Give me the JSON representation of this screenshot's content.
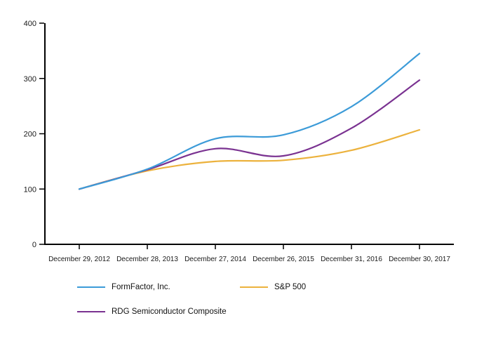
{
  "chart_data": {
    "type": "line",
    "title": "",
    "xlabel": "",
    "ylabel": "",
    "x_tick_labels": [
      "December 29, 2012",
      "December 28, 2013",
      "December 27, 2014",
      "December 26, 2015",
      "December 31, 2016",
      "December 30, 2017"
    ],
    "y_ticks": [
      0,
      100,
      200,
      300,
      400
    ],
    "ylim": [
      0,
      400
    ],
    "grid": false,
    "legend_position": "bottom",
    "axis_color": "#000000",
    "tick_label_color": "#1a1a1a",
    "series": [
      {
        "name": "FormFactor, Inc.",
        "color": "#3c9bd8",
        "values": [
          100,
          136,
          191,
          198,
          249,
          345
        ]
      },
      {
        "name": "S&P 500",
        "color": "#ecb23d",
        "values": [
          100,
          133,
          150,
          152,
          170,
          207
        ]
      },
      {
        "name": "RDG Semiconductor Composite",
        "color": "#7a3291",
        "values": [
          100,
          135,
          173,
          160,
          210,
          297
        ]
      }
    ]
  },
  "legend": {
    "rows": [
      [
        "FormFactor, Inc.",
        "S&P 500"
      ],
      [
        "RDG Semiconductor Composite"
      ]
    ]
  }
}
